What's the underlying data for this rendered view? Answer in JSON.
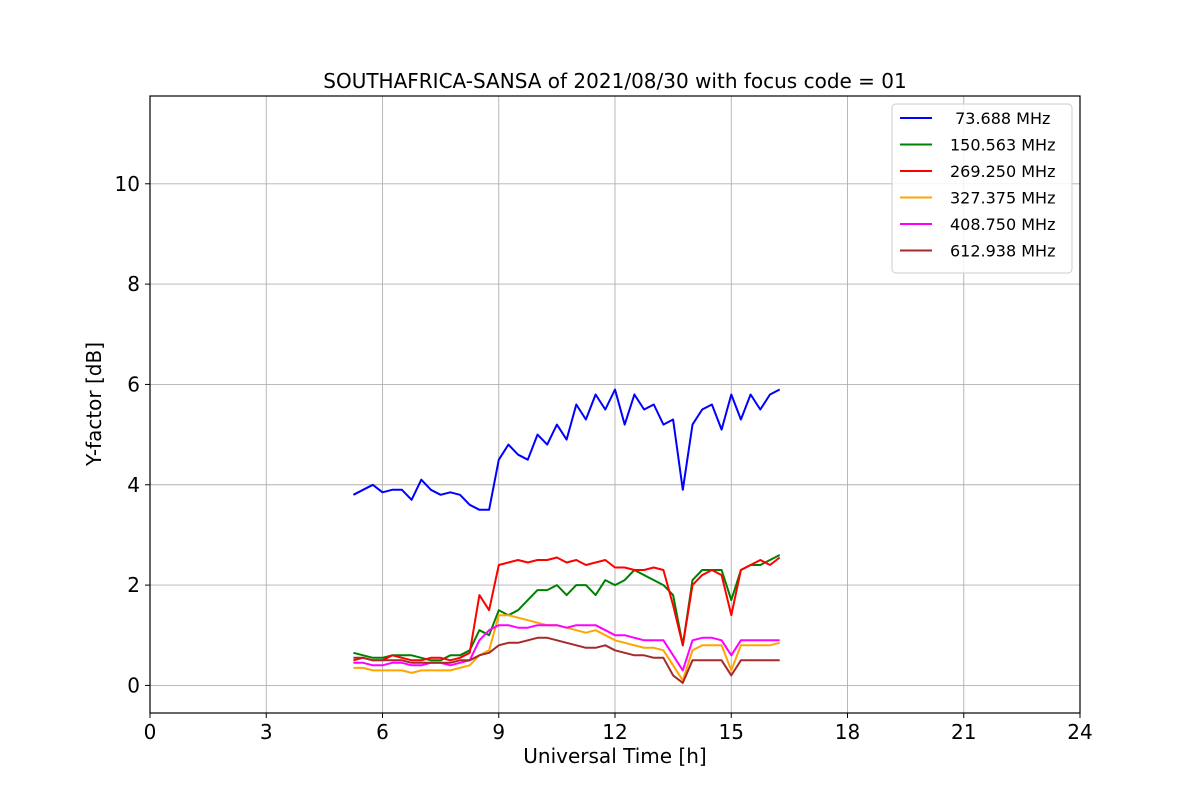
{
  "chart_data": {
    "type": "line",
    "title": "SOUTHAFRICA-SANSA of 2021/08/30 with focus code = 01",
    "xlabel": "Universal Time [h]",
    "ylabel": "Y-factor [dB]",
    "xlim": [
      0,
      24
    ],
    "ylim": [
      -0.55,
      11.75
    ],
    "xticks": [
      0,
      3,
      6,
      9,
      12,
      15,
      18,
      21,
      24
    ],
    "yticks": [
      0,
      2,
      4,
      6,
      8,
      10
    ],
    "grid": true,
    "legend_position": "top-right",
    "series": [
      {
        "name": " 73.688 MHz",
        "color": "#0000ff",
        "x": [
          5.25,
          5.5,
          5.75,
          6.0,
          6.25,
          6.5,
          6.75,
          7.0,
          7.25,
          7.5,
          7.75,
          8.0,
          8.25,
          8.5,
          8.75,
          9.0,
          9.25,
          9.5,
          9.75,
          10.0,
          10.25,
          10.5,
          10.75,
          11.0,
          11.25,
          11.5,
          11.75,
          12.0,
          12.25,
          12.5,
          12.75,
          13.0,
          13.25,
          13.5,
          13.75,
          14.0,
          14.25,
          14.5,
          14.75,
          15.0,
          15.25,
          15.5,
          15.75,
          16.0,
          16.25
        ],
        "values": [
          3.8,
          3.9,
          4.0,
          3.85,
          3.9,
          3.9,
          3.7,
          4.1,
          3.9,
          3.8,
          3.85,
          3.8,
          3.6,
          3.5,
          3.5,
          4.5,
          4.8,
          4.6,
          4.5,
          5.0,
          4.8,
          5.2,
          4.9,
          5.6,
          5.3,
          5.8,
          5.5,
          5.9,
          5.2,
          5.8,
          5.5,
          5.6,
          5.2,
          5.3,
          3.9,
          5.2,
          5.5,
          5.6,
          5.1,
          5.8,
          5.3,
          5.8,
          5.5,
          5.8,
          5.9
        ]
      },
      {
        "name": "150.563 MHz",
        "color": "#008000",
        "x": [
          5.25,
          5.5,
          5.75,
          6.0,
          6.25,
          6.5,
          6.75,
          7.0,
          7.25,
          7.5,
          7.75,
          8.0,
          8.25,
          8.5,
          8.75,
          9.0,
          9.25,
          9.5,
          9.75,
          10.0,
          10.25,
          10.5,
          10.75,
          11.0,
          11.25,
          11.5,
          11.75,
          12.0,
          12.25,
          12.5,
          12.75,
          13.0,
          13.25,
          13.5,
          13.75,
          14.0,
          14.25,
          14.5,
          14.75,
          15.0,
          15.25,
          15.5,
          15.75,
          16.0,
          16.25
        ],
        "values": [
          0.65,
          0.6,
          0.55,
          0.55,
          0.6,
          0.6,
          0.6,
          0.55,
          0.5,
          0.5,
          0.6,
          0.6,
          0.7,
          1.1,
          1.0,
          1.5,
          1.4,
          1.5,
          1.7,
          1.9,
          1.9,
          2.0,
          1.8,
          2.0,
          2.0,
          1.8,
          2.1,
          2.0,
          2.1,
          2.3,
          2.2,
          2.1,
          2.0,
          1.8,
          0.8,
          2.1,
          2.3,
          2.3,
          2.3,
          1.7,
          2.3,
          2.4,
          2.4,
          2.5,
          2.6
        ]
      },
      {
        "name": "269.250 MHz",
        "color": "#ff0000",
        "x": [
          5.25,
          5.5,
          5.75,
          6.0,
          6.25,
          6.5,
          6.75,
          7.0,
          7.25,
          7.5,
          7.75,
          8.0,
          8.25,
          8.5,
          8.75,
          9.0,
          9.25,
          9.5,
          9.75,
          10.0,
          10.25,
          10.5,
          10.75,
          11.0,
          11.25,
          11.5,
          11.75,
          12.0,
          12.25,
          12.5,
          12.75,
          13.0,
          13.25,
          13.5,
          13.75,
          14.0,
          14.25,
          14.5,
          14.75,
          15.0,
          15.25,
          15.5,
          15.75,
          16.0,
          16.25
        ],
        "values": [
          0.5,
          0.55,
          0.5,
          0.5,
          0.6,
          0.55,
          0.5,
          0.5,
          0.55,
          0.55,
          0.5,
          0.55,
          0.65,
          1.8,
          1.5,
          2.4,
          2.45,
          2.5,
          2.45,
          2.5,
          2.5,
          2.55,
          2.45,
          2.5,
          2.4,
          2.45,
          2.5,
          2.35,
          2.35,
          2.3,
          2.3,
          2.35,
          2.3,
          1.6,
          0.8,
          2.0,
          2.2,
          2.3,
          2.2,
          1.4,
          2.3,
          2.4,
          2.5,
          2.4,
          2.55
        ]
      },
      {
        "name": "327.375 MHz",
        "color": "#ffa500",
        "x": [
          5.25,
          5.5,
          5.75,
          6.0,
          6.25,
          6.5,
          6.75,
          7.0,
          7.25,
          7.5,
          7.75,
          8.0,
          8.25,
          8.5,
          8.75,
          9.0,
          9.25,
          9.5,
          9.75,
          10.0,
          10.25,
          10.5,
          10.75,
          11.0,
          11.25,
          11.5,
          11.75,
          12.0,
          12.25,
          12.5,
          12.75,
          13.0,
          13.25,
          13.5,
          13.75,
          14.0,
          14.25,
          14.5,
          14.75,
          15.0,
          15.25,
          15.5,
          15.75,
          16.0,
          16.25
        ],
        "values": [
          0.35,
          0.35,
          0.3,
          0.3,
          0.3,
          0.3,
          0.25,
          0.3,
          0.3,
          0.3,
          0.3,
          0.35,
          0.4,
          0.6,
          0.7,
          1.4,
          1.4,
          1.35,
          1.3,
          1.25,
          1.2,
          1.2,
          1.15,
          1.1,
          1.05,
          1.1,
          1.0,
          0.9,
          0.85,
          0.8,
          0.75,
          0.75,
          0.7,
          0.4,
          0.1,
          0.7,
          0.8,
          0.8,
          0.8,
          0.3,
          0.8,
          0.8,
          0.8,
          0.8,
          0.85
        ]
      },
      {
        "name": "408.750 MHz",
        "color": "#ff00ff",
        "x": [
          5.25,
          5.5,
          5.75,
          6.0,
          6.25,
          6.5,
          6.75,
          7.0,
          7.25,
          7.5,
          7.75,
          8.0,
          8.25,
          8.5,
          8.75,
          9.0,
          9.25,
          9.5,
          9.75,
          10.0,
          10.25,
          10.5,
          10.75,
          11.0,
          11.25,
          11.5,
          11.75,
          12.0,
          12.25,
          12.5,
          12.75,
          13.0,
          13.25,
          13.5,
          13.75,
          14.0,
          14.25,
          14.5,
          14.75,
          15.0,
          15.25,
          15.5,
          15.75,
          16.0,
          16.25
        ],
        "values": [
          0.45,
          0.45,
          0.4,
          0.4,
          0.45,
          0.45,
          0.4,
          0.4,
          0.45,
          0.45,
          0.4,
          0.45,
          0.5,
          0.9,
          1.1,
          1.2,
          1.2,
          1.15,
          1.15,
          1.2,
          1.2,
          1.2,
          1.15,
          1.2,
          1.2,
          1.2,
          1.1,
          1.0,
          1.0,
          0.95,
          0.9,
          0.9,
          0.9,
          0.6,
          0.3,
          0.9,
          0.95,
          0.95,
          0.9,
          0.6,
          0.9,
          0.9,
          0.9,
          0.9,
          0.9
        ]
      },
      {
        "name": "612.938 MHz",
        "color": "#a52a2a",
        "x": [
          5.25,
          5.5,
          5.75,
          6.0,
          6.25,
          6.5,
          6.75,
          7.0,
          7.25,
          7.5,
          7.75,
          8.0,
          8.25,
          8.5,
          8.75,
          9.0,
          9.25,
          9.5,
          9.75,
          10.0,
          10.25,
          10.5,
          10.75,
          11.0,
          11.25,
          11.5,
          11.75,
          12.0,
          12.25,
          12.5,
          12.75,
          13.0,
          13.25,
          13.5,
          13.75,
          14.0,
          14.25,
          14.5,
          14.75,
          15.0,
          15.25,
          15.5,
          15.75,
          16.0,
          16.25
        ],
        "values": [
          0.55,
          0.55,
          0.5,
          0.5,
          0.5,
          0.5,
          0.45,
          0.45,
          0.45,
          0.45,
          0.45,
          0.5,
          0.5,
          0.6,
          0.65,
          0.8,
          0.85,
          0.85,
          0.9,
          0.95,
          0.95,
          0.9,
          0.85,
          0.8,
          0.75,
          0.75,
          0.8,
          0.7,
          0.65,
          0.6,
          0.6,
          0.55,
          0.55,
          0.2,
          0.05,
          0.5,
          0.5,
          0.5,
          0.5,
          0.2,
          0.5,
          0.5,
          0.5,
          0.5,
          0.5
        ]
      }
    ]
  }
}
